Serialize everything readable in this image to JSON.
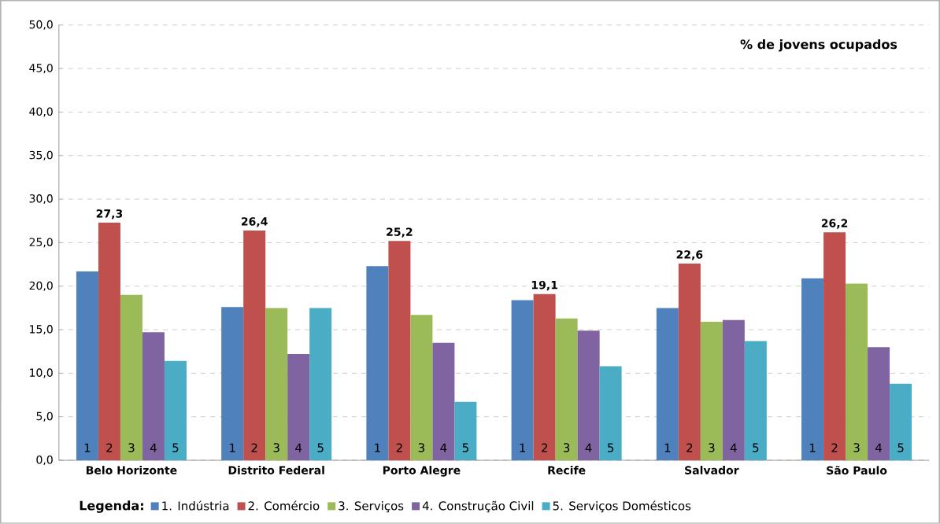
{
  "chart_data": {
    "type": "bar",
    "title": "% de jovens ocupados",
    "legend_title": "Legenda:",
    "categories": [
      "Belo Horizonte",
      "Distrito Federal",
      "Porto Alegre",
      "Recife",
      "Salvador",
      "São Paulo"
    ],
    "series": [
      {
        "name": "1. Indústria",
        "color": "#4f81bd",
        "values": [
          21.7,
          17.6,
          22.3,
          18.4,
          17.5,
          20.9
        ]
      },
      {
        "name": "2. Comércio",
        "color": "#c0504d",
        "values": [
          27.3,
          26.4,
          25.2,
          19.1,
          22.6,
          26.2
        ],
        "value_labels": [
          "27,3",
          "26,4",
          "25,2",
          "19,1",
          "22,6",
          "26,2"
        ]
      },
      {
        "name": "3. Serviços",
        "color": "#9bbb59",
        "values": [
          19.0,
          17.5,
          16.7,
          16.3,
          15.9,
          20.3
        ]
      },
      {
        "name": "4. Construção Civil",
        "color": "#8064a2",
        "values": [
          14.7,
          12.2,
          13.5,
          14.9,
          16.1,
          13.0
        ]
      },
      {
        "name": "5. Serviços Domésticos",
        "color": "#4bacc6",
        "values": [
          11.4,
          17.5,
          6.7,
          10.8,
          13.7,
          8.8
        ]
      }
    ],
    "annotations": [
      "1",
      "2",
      "3",
      "4",
      "5",
      "1",
      "2",
      "3",
      "4",
      "5",
      "1",
      "2",
      "3",
      "4",
      "5",
      "1",
      "2",
      "3",
      "4",
      "5",
      "1",
      "2",
      "3",
      "4",
      "5",
      "1",
      "2",
      "3",
      "4",
      "5"
    ],
    "ylim": [
      0,
      50
    ],
    "yticks": [
      {
        "value": 0,
        "label": "0,0"
      },
      {
        "value": 5,
        "label": "5,0"
      },
      {
        "value": 10,
        "label": "10,0"
      },
      {
        "value": 15,
        "label": "15,0"
      },
      {
        "value": 20,
        "label": "20,0"
      },
      {
        "value": 25,
        "label": "25,0"
      },
      {
        "value": 30,
        "label": "30,0"
      },
      {
        "value": 35,
        "label": "35,0"
      },
      {
        "value": 40,
        "label": "40,0"
      },
      {
        "value": 45,
        "label": "45,0"
      },
      {
        "value": 50,
        "label": "50,0"
      }
    ],
    "grid": "y",
    "legend": "bottom"
  }
}
